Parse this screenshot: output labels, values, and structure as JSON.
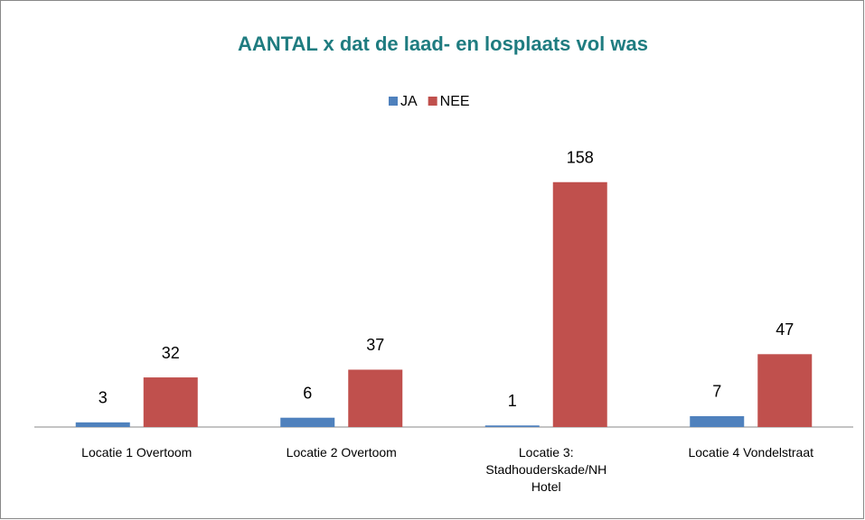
{
  "chart_data": {
    "type": "bar",
    "title": "AANTAL x dat de laad- en losplaats  vol was",
    "categories": [
      "Locatie 1 Overtoom",
      "Locatie 2 Overtoom",
      "Locatie 3: Stadhouderskade/NH Hotel",
      "Locatie 4 Vondelstraat"
    ],
    "series": [
      {
        "name": "JA",
        "color": "#4f81bd",
        "values": [
          3,
          6,
          1,
          7
        ]
      },
      {
        "name": "NEE",
        "color": "#c0504d",
        "values": [
          32,
          37,
          158,
          47
        ]
      }
    ],
    "ylim": [
      0,
      180
    ],
    "legend": "top"
  }
}
